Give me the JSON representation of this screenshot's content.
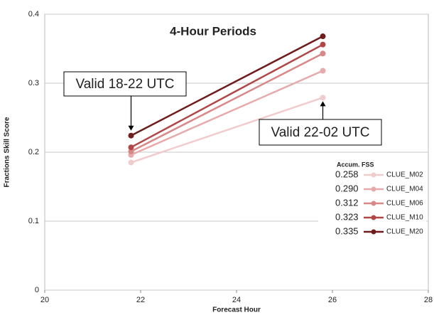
{
  "chart_data": {
    "type": "line",
    "title": "4-Hour Periods",
    "x_label": "Forecast Hour",
    "y_label": "Fractions Skill Score",
    "x": [
      21.8,
      25.8
    ],
    "series": [
      {
        "name": "CLUE_M02",
        "color": "#f0cccc",
        "values": [
          0.185,
          0.279
        ],
        "accum_fss": 0.258
      },
      {
        "name": "CLUE_M04",
        "color": "#e6aaaa",
        "values": [
          0.196,
          0.318
        ],
        "accum_fss": {
          "value": 0.29,
          "label": "0.290"
        }
      },
      {
        "name": "CLUE_M06",
        "color": "#d98888",
        "values": [
          0.201,
          0.343
        ],
        "accum_fss": 0.312
      },
      {
        "name": "CLUE_M10",
        "color": "#b04646",
        "values": [
          0.207,
          0.356
        ],
        "accum_fss": 0.323
      },
      {
        "name": "CLUE_M20",
        "color": "#6e1c1c",
        "values": [
          0.224,
          0.368
        ],
        "accum_fss": 0.335
      }
    ],
    "legend_title": "Accum. FSS",
    "annotations": [
      {
        "text": "Valid 18-22 UTC"
      },
      {
        "text": "Valid 22-02 UTC"
      }
    ],
    "xlim": [
      20,
      28
    ],
    "xticks": [
      20,
      22,
      24,
      26,
      28
    ],
    "ylim": [
      0,
      0.4
    ],
    "yticks": [
      0,
      0.1,
      0.2,
      0.3,
      0.4
    ],
    "grid": true
  }
}
